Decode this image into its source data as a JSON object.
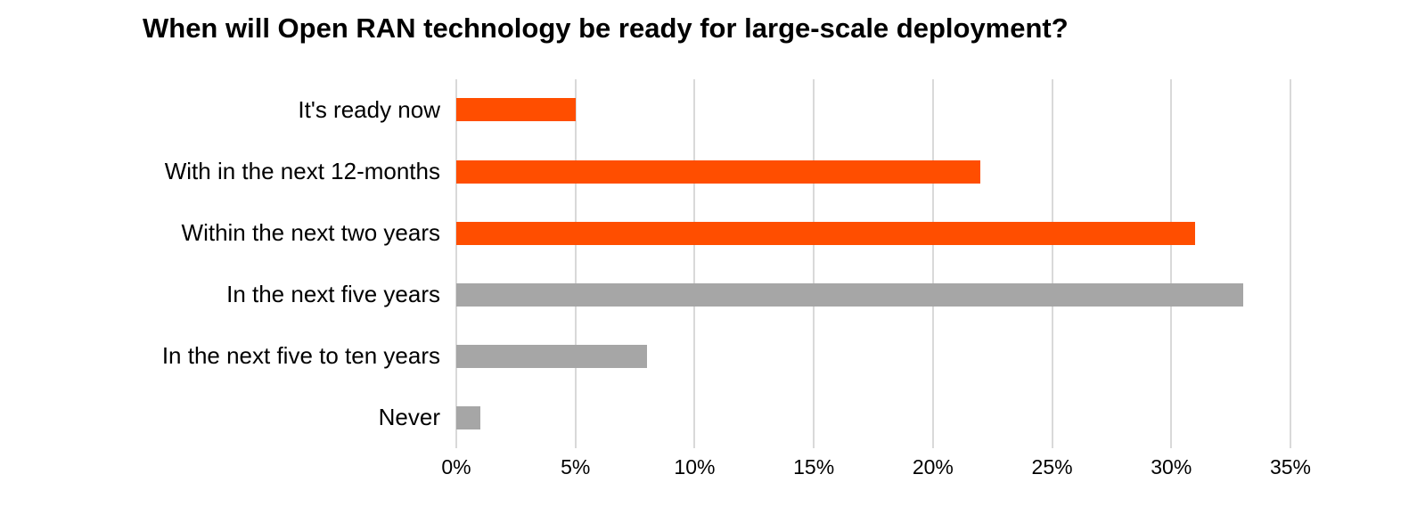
{
  "title": "When will Open RAN technology be ready for large-scale deployment?",
  "chart_data": {
    "type": "bar",
    "orientation": "horizontal",
    "title": "When will Open RAN technology be ready for large-scale deployment?",
    "categories": [
      "It's ready now",
      "With in the next 12-months",
      "Within the next two years",
      "In the next five years",
      "In the next five to ten years",
      "Never"
    ],
    "values": [
      5,
      22,
      31,
      33,
      8,
      1
    ],
    "value_unit": "%",
    "bar_colors": [
      "#FF4E00",
      "#FF4E00",
      "#FF4E00",
      "#A6A6A6",
      "#A6A6A6",
      "#A6A6A6"
    ],
    "x_ticks": [
      0,
      5,
      10,
      15,
      20,
      25,
      30,
      35
    ],
    "x_tick_labels": [
      "0%",
      "5%",
      "10%",
      "15%",
      "20%",
      "25%",
      "30%",
      "35%"
    ],
    "xlim": [
      0,
      35
    ],
    "xlabel": "",
    "ylabel": "",
    "grid": "vertical gridlines on",
    "legend": "none",
    "colors": {
      "orange_bar": "#FF4E00",
      "gray_bar": "#A6A6A6",
      "gridline": "#D9D9D9",
      "text": "#000000",
      "background": "#FFFFFF"
    }
  }
}
